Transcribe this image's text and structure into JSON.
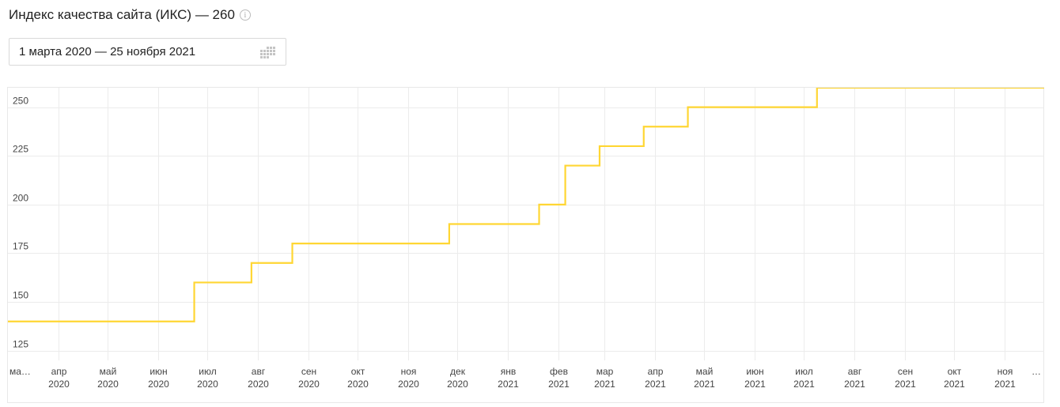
{
  "header": {
    "title": "Индекс качества сайта (ИКС) — 260",
    "info_icon": "info-circle-icon"
  },
  "date_picker": {
    "value": "1 марта 2020 — 25 ноября 2021",
    "icon": "calendar-grid-icon"
  },
  "chart_data": {
    "type": "line",
    "title": "",
    "xlabel": "",
    "ylabel": "",
    "step": true,
    "line_color": "#ffd633",
    "grid": true,
    "ylim": [
      120,
      260
    ],
    "yticks": [
      125,
      150,
      175,
      200,
      225,
      250
    ],
    "x_range": [
      "2020-03-01",
      "2021-11-25"
    ],
    "xticks": [
      {
        "date": "2020-03-01",
        "month": "ма…",
        "year": ""
      },
      {
        "date": "2020-04-01",
        "month": "апр",
        "year": "2020"
      },
      {
        "date": "2020-05-01",
        "month": "май",
        "year": "2020"
      },
      {
        "date": "2020-06-01",
        "month": "июн",
        "year": "2020"
      },
      {
        "date": "2020-07-01",
        "month": "июл",
        "year": "2020"
      },
      {
        "date": "2020-08-01",
        "month": "авг",
        "year": "2020"
      },
      {
        "date": "2020-09-01",
        "month": "сен",
        "year": "2020"
      },
      {
        "date": "2020-10-01",
        "month": "окт",
        "year": "2020"
      },
      {
        "date": "2020-11-01",
        "month": "ноя",
        "year": "2020"
      },
      {
        "date": "2020-12-01",
        "month": "дек",
        "year": "2020"
      },
      {
        "date": "2021-01-01",
        "month": "янв",
        "year": "2021"
      },
      {
        "date": "2021-02-01",
        "month": "фев",
        "year": "2021"
      },
      {
        "date": "2021-03-01",
        "month": "мар",
        "year": "2021"
      },
      {
        "date": "2021-04-01",
        "month": "апр",
        "year": "2021"
      },
      {
        "date": "2021-05-01",
        "month": "май",
        "year": "2021"
      },
      {
        "date": "2021-06-01",
        "month": "июн",
        "year": "2021"
      },
      {
        "date": "2021-07-01",
        "month": "июл",
        "year": "2021"
      },
      {
        "date": "2021-08-01",
        "month": "авг",
        "year": "2021"
      },
      {
        "date": "2021-09-01",
        "month": "сен",
        "year": "2021"
      },
      {
        "date": "2021-10-01",
        "month": "окт",
        "year": "2021"
      },
      {
        "date": "2021-11-01",
        "month": "ноя",
        "year": "2021"
      },
      {
        "date": "2021-11-25",
        "month": "…",
        "year": ""
      }
    ],
    "series": [
      {
        "name": "",
        "points": [
          {
            "date": "2020-03-01",
            "value": 140
          },
          {
            "date": "2020-06-23",
            "value": 160
          },
          {
            "date": "2020-07-28",
            "value": 170
          },
          {
            "date": "2020-08-22",
            "value": 180
          },
          {
            "date": "2020-11-26",
            "value": 190
          },
          {
            "date": "2021-01-20",
            "value": 200
          },
          {
            "date": "2021-02-05",
            "value": 220
          },
          {
            "date": "2021-02-26",
            "value": 230
          },
          {
            "date": "2021-03-25",
            "value": 240
          },
          {
            "date": "2021-04-21",
            "value": 250
          },
          {
            "date": "2021-07-09",
            "value": 260
          },
          {
            "date": "2021-11-25",
            "value": 260
          }
        ]
      }
    ]
  }
}
